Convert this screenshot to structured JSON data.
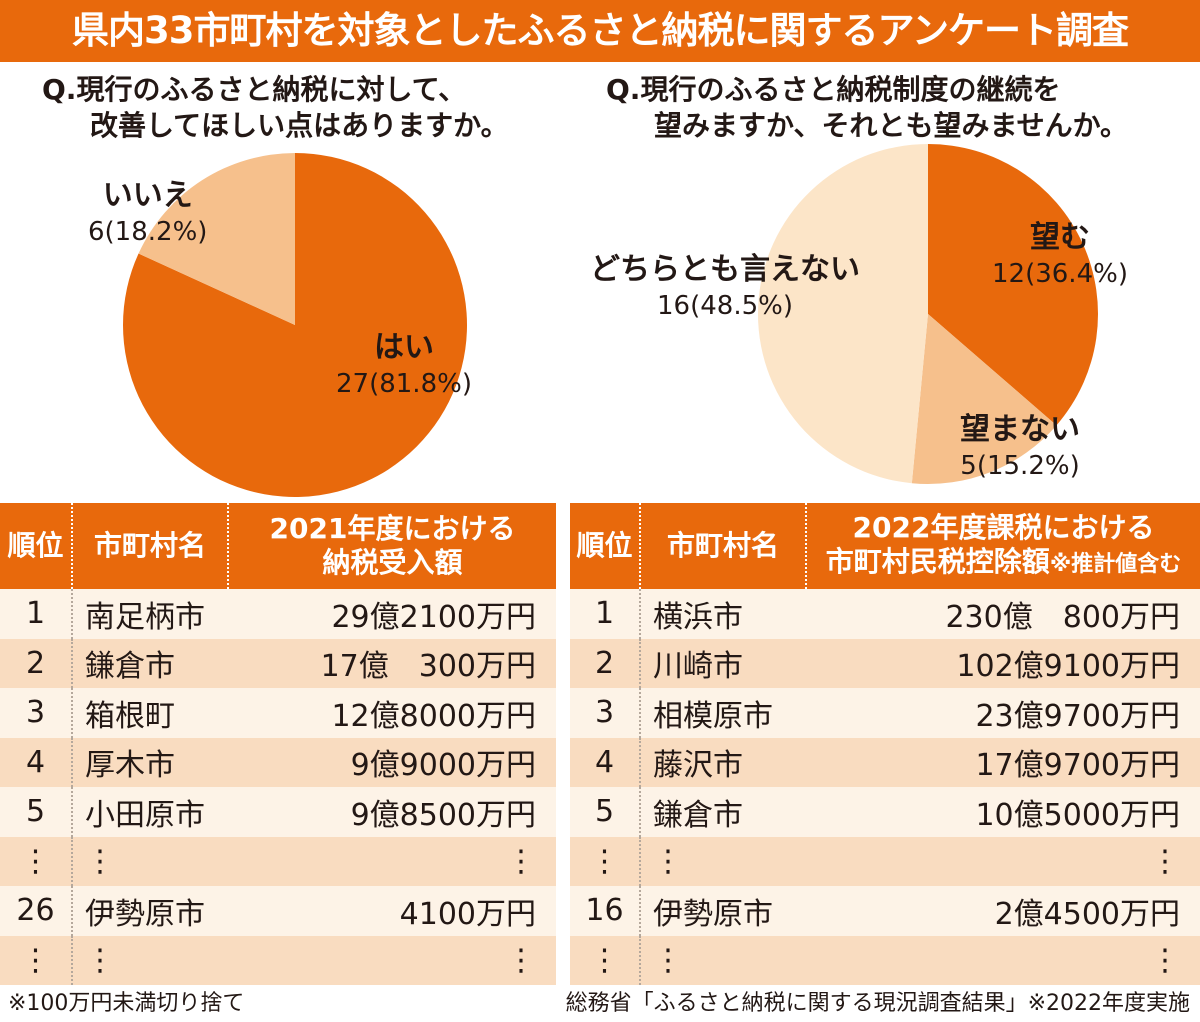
{
  "title": "県内33市町村を対象としたふるさと納税に関するアンケート調査",
  "survey1": {
    "question_line1": "Q.現行のふるさと納税に対して、",
    "question_line2": "改善してほしい点はありますか。"
  },
  "survey2": {
    "question_line1": "Q.現行のふるさと納税制度の継続を",
    "question_line2": "望みますか、それとも望みませんか。"
  },
  "chart_data": [
    {
      "type": "pie",
      "title": "Q.現行のふるさと納税に対して、改善してほしい点はありますか。",
      "slices": [
        {
          "label": "はい",
          "value": 27,
          "percent": 81.8,
          "value_text": "27(81.8%)",
          "color": "#e8690c"
        },
        {
          "label": "いいえ",
          "value": 6,
          "percent": 18.2,
          "value_text": "6(18.2%)",
          "color": "#f6c08c"
        }
      ]
    },
    {
      "type": "pie",
      "title": "Q.現行のふるさと納税制度の継続を望みますか、それとも望みませんか。",
      "slices": [
        {
          "label": "望む",
          "value": 12,
          "percent": 36.4,
          "value_text": "12(36.4%)",
          "color": "#e8690c"
        },
        {
          "label": "望まない",
          "value": 5,
          "percent": 15.2,
          "value_text": "5(15.2%)",
          "color": "#f6c08c"
        },
        {
          "label": "どちらとも言えない",
          "value": 16,
          "percent": 48.5,
          "value_text": "16(48.5%)",
          "color": "#fce5c8"
        }
      ]
    },
    {
      "type": "table",
      "headers": {
        "rank": "順位",
        "name": "市町村名",
        "amount_line1": "2021年度における",
        "amount_line2": "納税受入額"
      },
      "rows": [
        {
          "rank": "1",
          "name": "南足柄市",
          "amount": "29億2100万円"
        },
        {
          "rank": "2",
          "name": "鎌倉市",
          "amount": "17億　300万円"
        },
        {
          "rank": "3",
          "name": "箱根町",
          "amount": "12億8000万円"
        },
        {
          "rank": "4",
          "name": "厚木市",
          "amount": "9億9000万円"
        },
        {
          "rank": "5",
          "name": "小田原市",
          "amount": "9億8500万円"
        },
        {
          "rank": "⋮",
          "name": "⋮",
          "amount": "⋮"
        },
        {
          "rank": "26",
          "name": "伊勢原市",
          "amount": "4100万円"
        },
        {
          "rank": "⋮",
          "name": "⋮",
          "amount": "⋮"
        }
      ]
    },
    {
      "type": "table",
      "headers": {
        "rank": "順位",
        "name": "市町村名",
        "amount_line1": "2022年度課税における",
        "amount_line2": "市町村民税控除額",
        "amount_note": "※推計値含む"
      },
      "rows": [
        {
          "rank": "1",
          "name": "横浜市",
          "amount": "230億　800万円"
        },
        {
          "rank": "2",
          "name": "川崎市",
          "amount": "102億9100万円"
        },
        {
          "rank": "3",
          "name": "相模原市",
          "amount": "23億9700万円"
        },
        {
          "rank": "4",
          "name": "藤沢市",
          "amount": "17億9700万円"
        },
        {
          "rank": "5",
          "name": "鎌倉市",
          "amount": "10億5000万円"
        },
        {
          "rank": "⋮",
          "name": "⋮",
          "amount": "⋮"
        },
        {
          "rank": "16",
          "name": "伊勢原市",
          "amount": "2億4500万円"
        },
        {
          "rank": "⋮",
          "name": "⋮",
          "amount": "⋮"
        }
      ]
    }
  ],
  "footer": {
    "left": "※100万円未満切り捨て",
    "right": "総務省「ふるさと納税に関する現況調査結果」※2022年度実施"
  }
}
